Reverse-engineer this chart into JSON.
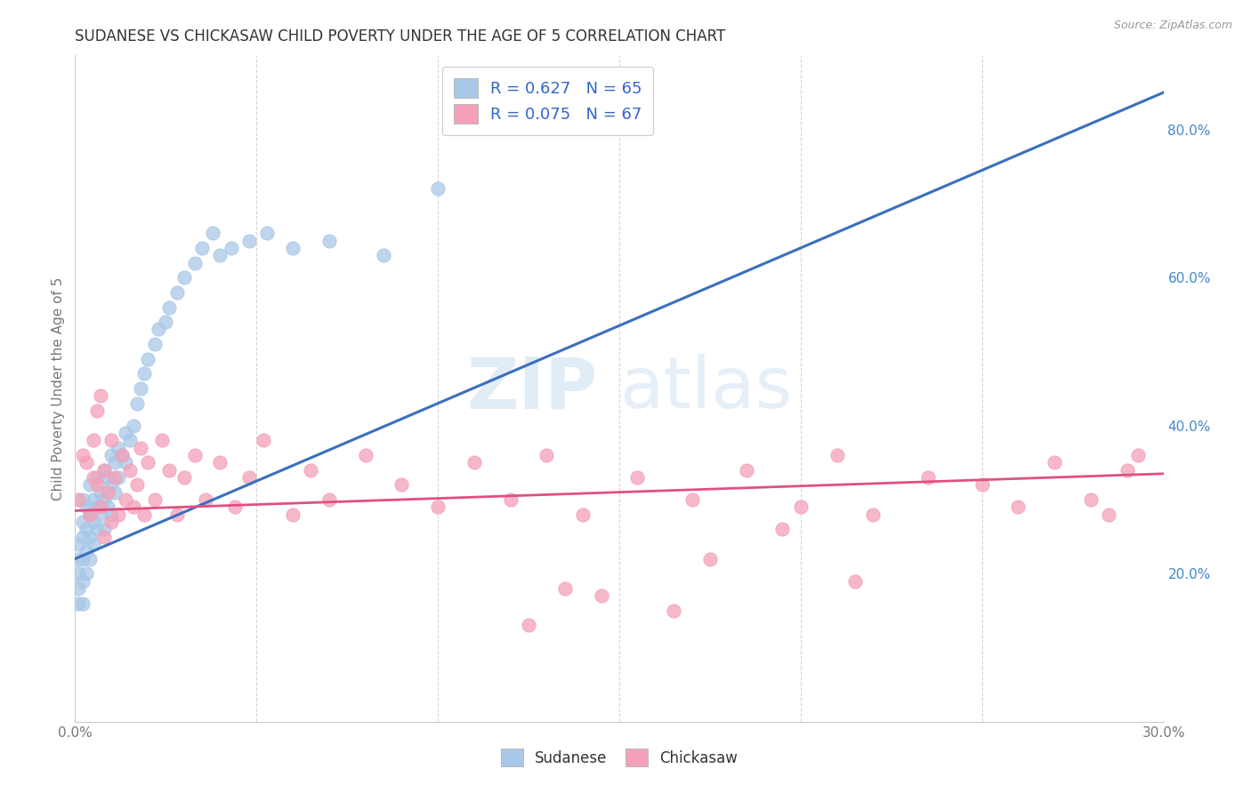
{
  "title": "SUDANESE VS CHICKASAW CHILD POVERTY UNDER THE AGE OF 5 CORRELATION CHART",
  "source": "Source: ZipAtlas.com",
  "ylabel": "Child Poverty Under the Age of 5",
  "xlim": [
    0.0,
    0.3
  ],
  "ylim": [
    0.0,
    0.9
  ],
  "yticks_right": [
    0.2,
    0.4,
    0.6,
    0.8
  ],
  "ytick_right_labels": [
    "20.0%",
    "40.0%",
    "60.0%",
    "80.0%"
  ],
  "blue_R": 0.627,
  "blue_N": 65,
  "pink_R": 0.075,
  "pink_N": 67,
  "blue_scatter_color": "#a8c8e8",
  "pink_scatter_color": "#f4a0b8",
  "blue_line_color": "#3a6fbf",
  "pink_line_color": "#e05080",
  "watermark_zip": "ZIP",
  "watermark_atlas": "atlas",
  "background_color": "#ffffff",
  "grid_color": "#cccccc",
  "blue_line_x0": 0.0,
  "blue_line_y0": 0.22,
  "blue_line_x1": 0.3,
  "blue_line_y1": 0.85,
  "pink_line_x0": 0.0,
  "pink_line_y0": 0.285,
  "pink_line_x1": 0.3,
  "pink_line_y1": 0.335,
  "sudanese_x": [
    0.001,
    0.001,
    0.001,
    0.001,
    0.001,
    0.002,
    0.002,
    0.002,
    0.002,
    0.002,
    0.002,
    0.003,
    0.003,
    0.003,
    0.003,
    0.004,
    0.004,
    0.004,
    0.004,
    0.005,
    0.005,
    0.005,
    0.006,
    0.006,
    0.006,
    0.007,
    0.007,
    0.008,
    0.008,
    0.008,
    0.009,
    0.009,
    0.01,
    0.01,
    0.01,
    0.011,
    0.011,
    0.012,
    0.012,
    0.013,
    0.014,
    0.014,
    0.015,
    0.016,
    0.017,
    0.018,
    0.019,
    0.02,
    0.022,
    0.023,
    0.025,
    0.026,
    0.028,
    0.03,
    0.033,
    0.035,
    0.038,
    0.04,
    0.043,
    0.048,
    0.053,
    0.06,
    0.07,
    0.085,
    0.1
  ],
  "sudanese_y": [
    0.16,
    0.18,
    0.2,
    0.22,
    0.24,
    0.16,
    0.19,
    0.22,
    0.25,
    0.27,
    0.3,
    0.2,
    0.23,
    0.26,
    0.29,
    0.22,
    0.25,
    0.28,
    0.32,
    0.24,
    0.27,
    0.3,
    0.26,
    0.29,
    0.33,
    0.28,
    0.31,
    0.26,
    0.3,
    0.34,
    0.29,
    0.33,
    0.28,
    0.32,
    0.36,
    0.31,
    0.35,
    0.33,
    0.37,
    0.36,
    0.35,
    0.39,
    0.38,
    0.4,
    0.43,
    0.45,
    0.47,
    0.49,
    0.51,
    0.53,
    0.54,
    0.56,
    0.58,
    0.6,
    0.62,
    0.64,
    0.66,
    0.63,
    0.64,
    0.65,
    0.66,
    0.64,
    0.65,
    0.63,
    0.72
  ],
  "chickasaw_x": [
    0.001,
    0.002,
    0.003,
    0.004,
    0.005,
    0.005,
    0.006,
    0.006,
    0.007,
    0.007,
    0.008,
    0.008,
    0.009,
    0.01,
    0.01,
    0.011,
    0.012,
    0.013,
    0.014,
    0.015,
    0.016,
    0.017,
    0.018,
    0.019,
    0.02,
    0.022,
    0.024,
    0.026,
    0.028,
    0.03,
    0.033,
    0.036,
    0.04,
    0.044,
    0.048,
    0.052,
    0.06,
    0.065,
    0.07,
    0.08,
    0.09,
    0.1,
    0.11,
    0.12,
    0.13,
    0.14,
    0.155,
    0.17,
    0.185,
    0.2,
    0.21,
    0.22,
    0.235,
    0.25,
    0.26,
    0.27,
    0.28,
    0.285,
    0.29,
    0.293,
    0.175,
    0.195,
    0.215,
    0.145,
    0.165,
    0.135,
    0.125
  ],
  "chickasaw_y": [
    0.3,
    0.36,
    0.35,
    0.28,
    0.33,
    0.38,
    0.32,
    0.42,
    0.29,
    0.44,
    0.34,
    0.25,
    0.31,
    0.27,
    0.38,
    0.33,
    0.28,
    0.36,
    0.3,
    0.34,
    0.29,
    0.32,
    0.37,
    0.28,
    0.35,
    0.3,
    0.38,
    0.34,
    0.28,
    0.33,
    0.36,
    0.3,
    0.35,
    0.29,
    0.33,
    0.38,
    0.28,
    0.34,
    0.3,
    0.36,
    0.32,
    0.29,
    0.35,
    0.3,
    0.36,
    0.28,
    0.33,
    0.3,
    0.34,
    0.29,
    0.36,
    0.28,
    0.33,
    0.32,
    0.29,
    0.35,
    0.3,
    0.28,
    0.34,
    0.36,
    0.22,
    0.26,
    0.19,
    0.17,
    0.15,
    0.18,
    0.13
  ]
}
